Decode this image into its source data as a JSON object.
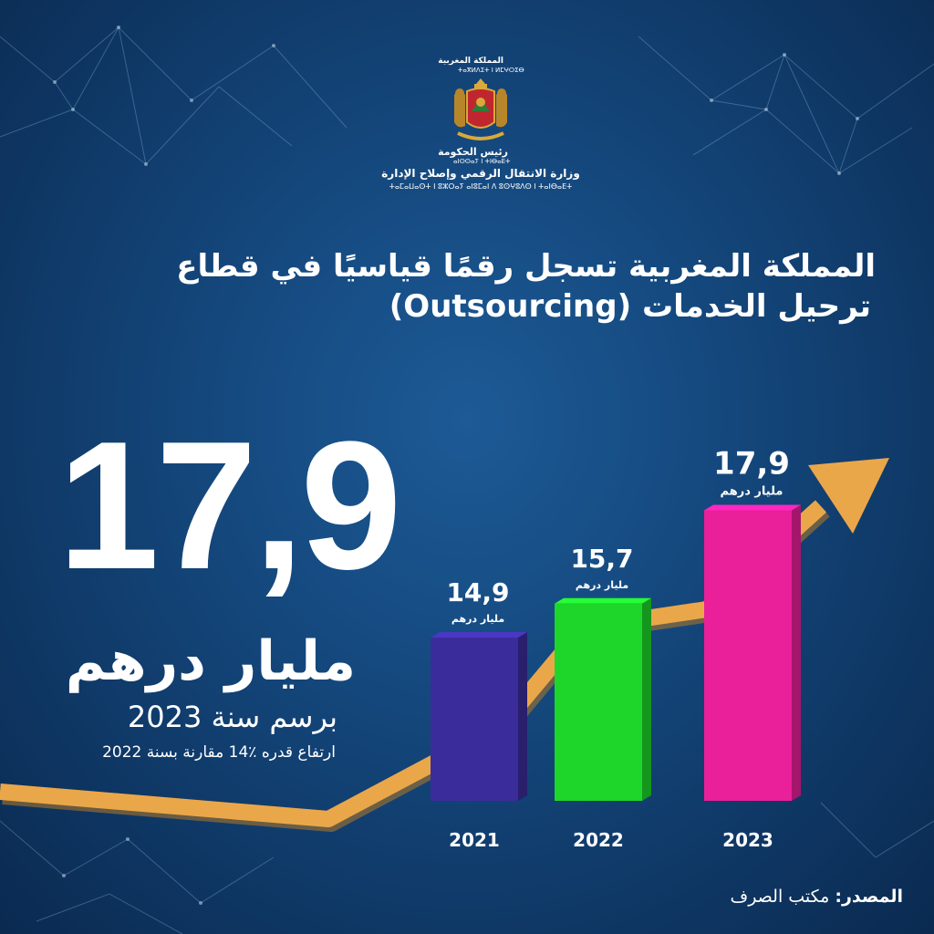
{
  "header": {
    "kingdom_ar": "المملكة المغربية",
    "kingdom_tifinagh": "ⵜⴰⴳⵍⴷⵉⵜ ⵏ ⵍⵎⵖⵔⵉⴱ",
    "head_of_government_ar": "رئيس الحكومة",
    "head_of_government_tifinagh": "ⴰⵏⵙⵙⴰⵢ ⵏ ⵜⵏⴱⴰⴹⵜ",
    "ministry_ar": "وزارة الانتقال الرقمي وإصلاح الإدارة",
    "ministry_tifinagh": "ⵜⴰⵎⴰⵡⴰⵙⵜ ⵏ ⵓⵣⵔⴰⵢ ⴰⵏⵓⵎⴰⵏ ⴷ ⵓⵙⵖⵓⴷⵙ ⵏ ⵜⴰⵏⴱⴰⴹⵜ"
  },
  "title": {
    "line1": "المملكة المغربية تسجل رقمًا قياسيًا في قطاع",
    "line2": "ترحيل الخدمات (Outsourcing)"
  },
  "highlight": {
    "value": "17,9",
    "unit": "مليار درهم",
    "year_text": "برسم سنة 2023",
    "growth_text": "ارتفاع قدره ٪14 مقارنة بسنة 2022"
  },
  "chart_data": {
    "type": "bar",
    "categories": [
      "2021",
      "2022",
      "2023"
    ],
    "values": [
      14.9,
      15.7,
      17.9
    ],
    "value_labels": [
      "14,9",
      "15,7",
      "17,9"
    ],
    "unit_label": "مليار درهم",
    "bar_colors": [
      "#3b2c9c",
      "#1ed62a",
      "#ea1f9a"
    ],
    "arrow_color": "#eaa74a"
  },
  "source": {
    "label": "المصدر:",
    "text": "مكتب الصرف"
  },
  "colors": {
    "background": "#154a80",
    "text": "#ffffff",
    "accent_arrow": "#eaa74a"
  }
}
